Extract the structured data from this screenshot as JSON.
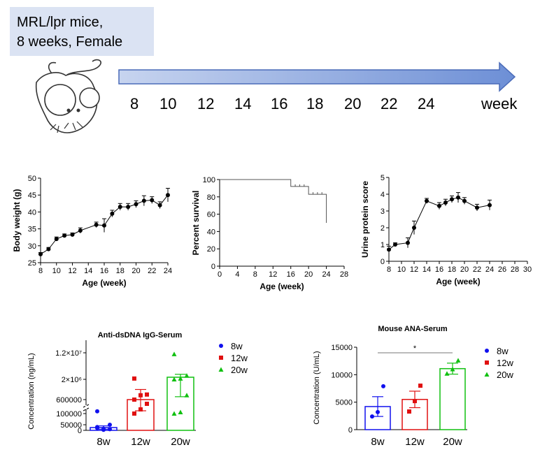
{
  "header": {
    "line1": "MRL/lpr mice,",
    "line2": "8 weeks, Female"
  },
  "timeline": {
    "weeks": [
      "8",
      "10",
      "12",
      "14",
      "16",
      "18",
      "20",
      "22",
      "24"
    ],
    "unit": "week"
  },
  "colors": {
    "arrow": "#6d8fd6",
    "blue": "#1010ee",
    "red": "#e01010",
    "green": "#10c010",
    "grey": "#555555"
  },
  "chart_data": [
    {
      "id": "body-weight",
      "type": "line",
      "title": "",
      "xlabel": "Age (week)",
      "ylabel": "Body weight (g)",
      "xlim": [
        8,
        24
      ],
      "ylim": [
        25,
        50
      ],
      "xticks": [
        "8",
        "10",
        "12",
        "14",
        "16",
        "18",
        "20",
        "22",
        "24"
      ],
      "yticks": [
        "25",
        "30",
        "35",
        "40",
        "45",
        "50"
      ],
      "series": [
        {
          "x": [
            8,
            9,
            10,
            11,
            12,
            13,
            15,
            16,
            17,
            18,
            19,
            20,
            21,
            22,
            23,
            24
          ],
          "y": [
            27.5,
            29,
            32,
            33,
            33.3,
            34.5,
            36.2,
            36,
            39.5,
            41.5,
            41.5,
            42.3,
            43.3,
            43.5,
            42,
            45
          ],
          "err": [
            0.5,
            0.5,
            0.6,
            0.5,
            0.5,
            0.8,
            0.8,
            2,
            1,
            1,
            1,
            1,
            1.5,
            1,
            1,
            2
          ]
        }
      ]
    },
    {
      "id": "survival",
      "type": "line",
      "title": "",
      "xlabel": "Age (week)",
      "ylabel": "Percent survival",
      "xlim": [
        0,
        28
      ],
      "ylim": [
        0,
        100
      ],
      "xticks": [
        "0",
        "4",
        "8",
        "12",
        "16",
        "20",
        "24",
        "28"
      ],
      "yticks": [
        "0",
        "20",
        "40",
        "60",
        "80",
        "100"
      ],
      "series": [
        {
          "x": [
            0,
            16,
            16,
            20,
            20,
            24,
            24
          ],
          "y": [
            100,
            100,
            92,
            92,
            83,
            83,
            50
          ]
        }
      ]
    },
    {
      "id": "urine-protein",
      "type": "line",
      "title": "",
      "xlabel": "Age (week)",
      "ylabel": "Urine protein score",
      "xlim": [
        8,
        30
      ],
      "ylim": [
        0,
        5
      ],
      "xticks": [
        "8",
        "10",
        "12",
        "14",
        "16",
        "18",
        "20",
        "22",
        "24",
        "26",
        "28",
        "30"
      ],
      "yticks": [
        "0",
        "1",
        "2",
        "3",
        "4",
        "5"
      ],
      "series": [
        {
          "x": [
            8,
            9,
            11,
            12,
            14,
            16,
            17,
            18,
            19,
            20,
            22,
            24
          ],
          "y": [
            0.7,
            1,
            1.1,
            2,
            3.6,
            3.3,
            3.5,
            3.7,
            3.8,
            3.6,
            3.2,
            3.35
          ],
          "err": [
            0.2,
            0.1,
            0.3,
            0.4,
            0.15,
            0.2,
            0.2,
            0.2,
            0.3,
            0.2,
            0.2,
            0.3
          ]
        }
      ]
    },
    {
      "id": "anti-dsdna",
      "type": "bar",
      "title": "Anti-dsDNA IgG-Serum",
      "xlabel": "",
      "ylabel": "Concentration (ng/mL)",
      "categories": [
        "8w",
        "12w",
        "20w"
      ],
      "yticks": [
        "0",
        "50000",
        "100000",
        "600000",
        "2×10⁶",
        "1.2×10⁷"
      ],
      "values": [
        25000,
        600000,
        2800000
      ],
      "points": [
        [
          30000,
          15000,
          10000,
          20000,
          5000,
          50000,
          180000
        ],
        [
          100000,
          250000,
          450000,
          600000,
          900000,
          950000,
          2300000
        ],
        [
          100000,
          150000,
          900000,
          2000000,
          2300000,
          3400000,
          11500000
        ]
      ],
      "legend": [
        "8w",
        "12w",
        "20w"
      ]
    },
    {
      "id": "ana",
      "type": "bar",
      "title": "Mouse ANA-Serum",
      "xlabel": "",
      "ylabel": "Concentration (U/mL)",
      "categories": [
        "8w",
        "12w",
        "20w"
      ],
      "ylim": [
        0,
        15000
      ],
      "yticks": [
        "0",
        "5000",
        "10000",
        "15000"
      ],
      "values": [
        4200,
        5500,
        11100
      ],
      "err": [
        1800,
        1500,
        1000
      ],
      "points": [
        [
          2400,
          3200,
          7900
        ],
        [
          3300,
          5200,
          8000
        ],
        [
          10200,
          11000,
          12600
        ]
      ],
      "significance": "*",
      "legend": [
        "8w",
        "12w",
        "20w"
      ]
    }
  ]
}
